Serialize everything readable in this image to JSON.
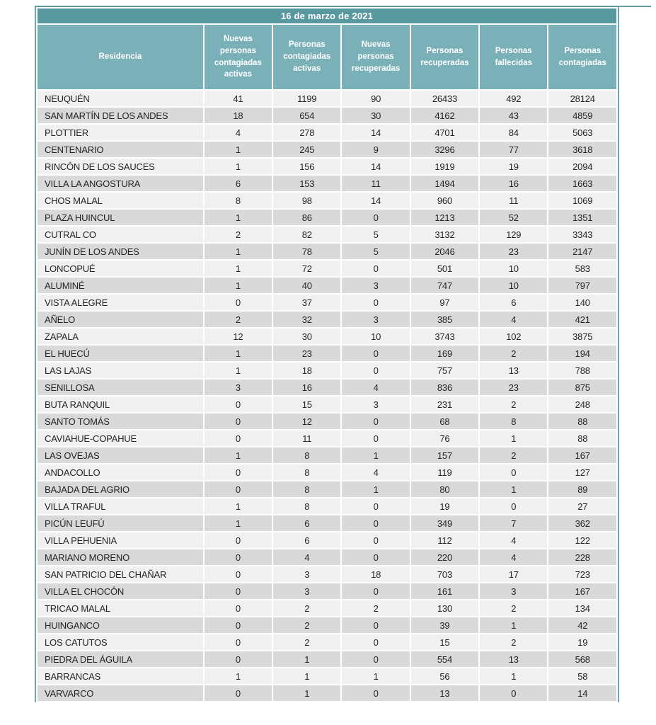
{
  "report": {
    "title": "16 de marzo de 2021",
    "columns": [
      "Residencia",
      "Nuevas personas contagiadas activas",
      "Personas contagiadas activas",
      "Nuevas personas recuperadas",
      "Personas recuperadas",
      "Personas fallecidas",
      "Personas contagiadas"
    ],
    "rows": [
      {
        "residencia": "NEUQUÉN",
        "values": [
          41,
          1199,
          90,
          26433,
          492,
          28124
        ]
      },
      {
        "residencia": "SAN MARTÍN DE LOS ANDES",
        "values": [
          18,
          654,
          30,
          4162,
          43,
          4859
        ]
      },
      {
        "residencia": "PLOTTIER",
        "values": [
          4,
          278,
          14,
          4701,
          84,
          5063
        ]
      },
      {
        "residencia": "CENTENARIO",
        "values": [
          1,
          245,
          9,
          3296,
          77,
          3618
        ]
      },
      {
        "residencia": "RINCÓN DE LOS SAUCES",
        "values": [
          1,
          156,
          14,
          1919,
          19,
          2094
        ]
      },
      {
        "residencia": "VILLA LA ANGOSTURA",
        "values": [
          6,
          153,
          11,
          1494,
          16,
          1663
        ]
      },
      {
        "residencia": "CHOS MALAL",
        "values": [
          8,
          98,
          14,
          960,
          11,
          1069
        ]
      },
      {
        "residencia": "PLAZA HUINCUL",
        "values": [
          1,
          86,
          0,
          1213,
          52,
          1351
        ]
      },
      {
        "residencia": "CUTRAL CO",
        "values": [
          2,
          82,
          5,
          3132,
          129,
          3343
        ]
      },
      {
        "residencia": "JUNÍN DE LOS ANDES",
        "values": [
          1,
          78,
          5,
          2046,
          23,
          2147
        ]
      },
      {
        "residencia": "LONCOPUÉ",
        "values": [
          1,
          72,
          0,
          501,
          10,
          583
        ]
      },
      {
        "residencia": "ALUMINÉ",
        "values": [
          1,
          40,
          3,
          747,
          10,
          797
        ]
      },
      {
        "residencia": "VISTA ALEGRE",
        "values": [
          0,
          37,
          0,
          97,
          6,
          140
        ]
      },
      {
        "residencia": "AÑELO",
        "values": [
          2,
          32,
          3,
          385,
          4,
          421
        ]
      },
      {
        "residencia": "ZAPALA",
        "values": [
          12,
          30,
          10,
          3743,
          102,
          3875
        ]
      },
      {
        "residencia": "EL HUECÚ",
        "values": [
          1,
          23,
          0,
          169,
          2,
          194
        ]
      },
      {
        "residencia": "LAS LAJAS",
        "values": [
          1,
          18,
          0,
          757,
          13,
          788
        ]
      },
      {
        "residencia": "SENILLOSA",
        "values": [
          3,
          16,
          4,
          836,
          23,
          875
        ]
      },
      {
        "residencia": "BUTA RANQUIL",
        "values": [
          0,
          15,
          3,
          231,
          2,
          248
        ]
      },
      {
        "residencia": "SANTO TOMÁS",
        "values": [
          0,
          12,
          0,
          68,
          8,
          88
        ]
      },
      {
        "residencia": "CAVIAHUE-COPAHUE",
        "values": [
          0,
          11,
          0,
          76,
          1,
          88
        ]
      },
      {
        "residencia": "LAS OVEJAS",
        "values": [
          1,
          8,
          1,
          157,
          2,
          167
        ]
      },
      {
        "residencia": "ANDACOLLO",
        "values": [
          0,
          8,
          4,
          119,
          0,
          127
        ]
      },
      {
        "residencia": "BAJADA DEL AGRIO",
        "values": [
          0,
          8,
          1,
          80,
          1,
          89
        ]
      },
      {
        "residencia": "VILLA TRAFUL",
        "values": [
          1,
          8,
          0,
          19,
          0,
          27
        ]
      },
      {
        "residencia": "PICÚN LEUFÚ",
        "values": [
          1,
          6,
          0,
          349,
          7,
          362
        ]
      },
      {
        "residencia": "VILLA PEHUENIA",
        "values": [
          0,
          6,
          0,
          112,
          4,
          122
        ]
      },
      {
        "residencia": "MARIANO MORENO",
        "values": [
          0,
          4,
          0,
          220,
          4,
          228
        ]
      },
      {
        "residencia": "SAN PATRICIO DEL CHAÑAR",
        "values": [
          0,
          3,
          18,
          703,
          17,
          723
        ]
      },
      {
        "residencia": "VILLA EL CHOCÓN",
        "values": [
          0,
          3,
          0,
          161,
          3,
          167
        ]
      },
      {
        "residencia": "TRICAO MALAL",
        "values": [
          0,
          2,
          2,
          130,
          2,
          134
        ]
      },
      {
        "residencia": "HUINGANCO",
        "values": [
          0,
          2,
          0,
          39,
          1,
          42
        ]
      },
      {
        "residencia": "LOS CATUTOS",
        "values": [
          0,
          2,
          0,
          15,
          2,
          19
        ]
      },
      {
        "residencia": "PIEDRA DEL ÁGUILA",
        "values": [
          0,
          1,
          0,
          554,
          13,
          568
        ]
      },
      {
        "residencia": "BARRANCAS",
        "values": [
          1,
          1,
          1,
          56,
          1,
          58
        ]
      },
      {
        "residencia": "VARVARCO",
        "values": [
          0,
          1,
          0,
          13,
          0,
          14
        ]
      }
    ]
  },
  "colors": {
    "title_bar": "#58989f",
    "header_bg": "#7ab1b8",
    "side_border": "#6ca7ad",
    "row_light": "#f0f0f0",
    "row_dark": "#d9d9d9",
    "header_text": "#ffffff",
    "body_text": "#242424"
  }
}
